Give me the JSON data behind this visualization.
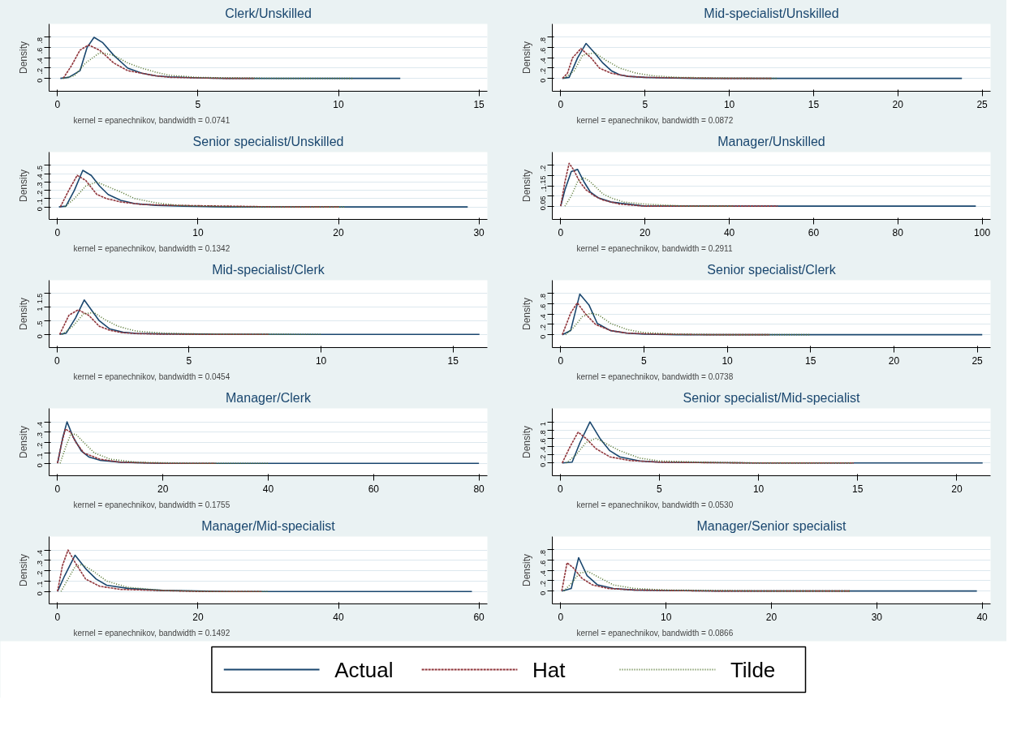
{
  "chart_data": [
    {
      "type": "line",
      "title": "Clerk/Unskilled",
      "ylabel": "Density",
      "annotations": [
        "kernel = epanechnikov, bandwidth = 0.0741"
      ],
      "xlim": [
        -0.3,
        15.3
      ],
      "xticks": [
        0,
        5,
        10,
        15
      ],
      "ylim": [
        -0.25,
        1.06
      ],
      "yticks": [
        0,
        {
          "value": 0.2,
          "label": ".2"
        },
        {
          "value": 0.4,
          "label": ".4"
        },
        {
          "value": 0.6,
          "label": ".6"
        },
        {
          "value": 0.8,
          "label": ".8"
        }
      ],
      "grid": "y",
      "legend": "bottom",
      "series": [
        {
          "name": "Actual",
          "color": "#1a476f",
          "line_style": "solid",
          "x": [
            0.1,
            0.4,
            0.8,
            1.05,
            1.3,
            1.6,
            2.0,
            2.5,
            3.0,
            3.5,
            4,
            5,
            6,
            8,
            10,
            12.2
          ],
          "values": [
            0,
            0.02,
            0.15,
            0.6,
            0.8,
            0.7,
            0.45,
            0.2,
            0.1,
            0.05,
            0.03,
            0.01,
            0,
            0,
            0,
            0
          ]
        },
        {
          "name": "Hat",
          "color": "#90353b",
          "line_style": "dashed",
          "x": [
            0.2,
            0.5,
            0.8,
            1.1,
            1.5,
            2.0,
            2.5,
            3,
            3.5,
            4,
            5,
            6,
            7
          ],
          "values": [
            0,
            0.25,
            0.55,
            0.65,
            0.55,
            0.3,
            0.15,
            0.1,
            0.05,
            0.02,
            0.01,
            0,
            0
          ]
        },
        {
          "name": "Tilde",
          "color": "#55752f",
          "line_style": "dotted",
          "x": [
            0.2,
            0.6,
            1.0,
            1.5,
            2.0,
            2.5,
            3,
            3.5,
            4,
            5,
            6,
            8,
            10.5
          ],
          "values": [
            0,
            0.05,
            0.3,
            0.5,
            0.45,
            0.3,
            0.2,
            0.12,
            0.06,
            0.02,
            0.01,
            0,
            0
          ]
        }
      ]
    },
    {
      "type": "line",
      "title": "Mid-specialist/Unskilled",
      "ylabel": "Density",
      "annotations": [
        "kernel = epanechnikov, bandwidth = 0.0872"
      ],
      "xlim": [
        -0.5,
        25.5
      ],
      "xticks": [
        0,
        5,
        10,
        15,
        20,
        25
      ],
      "ylim": [
        -0.25,
        1.06
      ],
      "yticks": [
        0,
        {
          "value": 0.2,
          "label": ".2"
        },
        {
          "value": 0.4,
          "label": ".4"
        },
        {
          "value": 0.6,
          "label": ".6"
        },
        {
          "value": 0.8,
          "label": ".8"
        }
      ],
      "grid": "y",
      "series": [
        {
          "color": "#1a476f",
          "line_style": "solid",
          "x": [
            0.1,
            0.5,
            1.0,
            1.5,
            2.0,
            2.5,
            3,
            3.5,
            4,
            5,
            6,
            8,
            10,
            15,
            20,
            23.8
          ],
          "values": [
            0,
            0.02,
            0.4,
            0.68,
            0.5,
            0.3,
            0.15,
            0.07,
            0.04,
            0.02,
            0.01,
            0,
            0,
            0,
            0,
            0
          ]
        },
        {
          "color": "#90353b",
          "line_style": "dashed",
          "x": [
            0.1,
            0.4,
            0.7,
            1.2,
            1.8,
            2.3,
            3,
            4,
            5,
            7,
            10,
            12.5
          ],
          "values": [
            0,
            0.1,
            0.4,
            0.58,
            0.4,
            0.2,
            0.1,
            0.04,
            0.02,
            0.01,
            0,
            0
          ]
        },
        {
          "color": "#55752f",
          "line_style": "dotted",
          "x": [
            0.2,
            0.8,
            1.3,
            2.0,
            2.7,
            3.5,
            4.5,
            5.5,
            7,
            9,
            12.8
          ],
          "values": [
            0,
            0.15,
            0.45,
            0.5,
            0.35,
            0.2,
            0.1,
            0.05,
            0.02,
            0.01,
            0
          ]
        }
      ]
    },
    {
      "type": "line",
      "title": "Senior specialist/Unskilled",
      "ylabel": "Density",
      "annotations": [
        "kernel = epanechnikov, bandwidth = 0.1342"
      ],
      "xlim": [
        -0.6,
        30.6
      ],
      "xticks": [
        0,
        10,
        20,
        30
      ],
      "ylim": [
        -0.15,
        0.66
      ],
      "yticks": [
        0,
        {
          "value": 0.1,
          "label": ".1"
        },
        {
          "value": 0.2,
          "label": ".2"
        },
        {
          "value": 0.3,
          "label": ".3"
        },
        {
          "value": 0.4,
          "label": ".4"
        },
        {
          "value": 0.5,
          "label": ".5"
        }
      ],
      "grid": "y",
      "series": [
        {
          "color": "#1a476f",
          "line_style": "solid",
          "x": [
            0.1,
            0.6,
            1.2,
            1.8,
            2.4,
            3.0,
            3.6,
            4.5,
            5.5,
            7,
            9,
            12,
            20,
            29.2
          ],
          "values": [
            0,
            0.01,
            0.2,
            0.44,
            0.38,
            0.25,
            0.15,
            0.08,
            0.04,
            0.02,
            0.01,
            0,
            0,
            0
          ]
        },
        {
          "color": "#90353b",
          "line_style": "dashed",
          "x": [
            0.2,
            0.8,
            1.4,
            2.0,
            2.8,
            3.5,
            4.5,
            6,
            8,
            12,
            16,
            20
          ],
          "values": [
            0,
            0.2,
            0.38,
            0.32,
            0.15,
            0.1,
            0.06,
            0.03,
            0.02,
            0.01,
            0,
            0
          ]
        },
        {
          "color": "#55752f",
          "line_style": "dotted",
          "x": [
            0.5,
            1.2,
            2.0,
            2.8,
            3.5,
            4.5,
            5.5,
            7,
            8.5,
            10,
            14,
            20.5
          ],
          "values": [
            0,
            0.1,
            0.25,
            0.3,
            0.25,
            0.18,
            0.1,
            0.05,
            0.02,
            0.01,
            0,
            0
          ]
        }
      ]
    },
    {
      "type": "line",
      "title": "Manager/Unskilled",
      "ylabel": "Density",
      "annotations": [
        "kernel = epanechnikov, bandwidth = 0.2911"
      ],
      "xlim": [
        -2,
        102
      ],
      "xticks": [
        0,
        20,
        40,
        60,
        80,
        100
      ],
      "ylim": [
        -0.065,
        0.265
      ],
      "yticks": [
        0,
        {
          "value": 0.05,
          "label": ".05"
        },
        {
          "value": 0.1,
          "label": ".1"
        },
        {
          "value": 0.15,
          "label": ".15"
        },
        {
          "value": 0.2,
          "label": ".2"
        }
      ],
      "grid": "y",
      "series": [
        {
          "color": "#1a476f",
          "line_style": "solid",
          "x": [
            0,
            1,
            2.5,
            4,
            5.5,
            7,
            9,
            12,
            16,
            20,
            30,
            50,
            98.5
          ],
          "values": [
            0,
            0.08,
            0.17,
            0.18,
            0.12,
            0.07,
            0.04,
            0.02,
            0.01,
            0,
            0,
            0,
            0
          ]
        },
        {
          "color": "#90353b",
          "line_style": "dashed",
          "x": [
            0,
            1,
            2,
            3,
            4.5,
            6,
            8,
            10,
            14,
            20,
            30,
            40,
            51.5
          ],
          "values": [
            0,
            0.12,
            0.21,
            0.18,
            0.12,
            0.08,
            0.05,
            0.03,
            0.01,
            0,
            0,
            0,
            0
          ]
        },
        {
          "color": "#55752f",
          "line_style": "dotted",
          "x": [
            1,
            2.5,
            4,
            5.5,
            7,
            8.5,
            10,
            12,
            15,
            20,
            30,
            41
          ],
          "values": [
            0,
            0.05,
            0.12,
            0.14,
            0.12,
            0.09,
            0.06,
            0.04,
            0.02,
            0.01,
            0,
            0
          ]
        }
      ]
    },
    {
      "type": "line",
      "title": "Mid-specialist/Clerk",
      "ylabel": "Density",
      "annotations": [
        "kernel = epanechnikov, bandwidth = 0.0454"
      ],
      "xlim": [
        -0.3,
        16.3
      ],
      "xticks": [
        0,
        5,
        10,
        15
      ],
      "ylim": [
        -0.48,
        1.98
      ],
      "yticks": [
        0,
        {
          "value": 0.5,
          "label": ".5"
        },
        1,
        1.5
      ],
      "grid": "y",
      "series": [
        {
          "color": "#1a476f",
          "line_style": "solid",
          "x": [
            0.1,
            0.35,
            0.7,
            1.03,
            1.3,
            1.6,
            2.0,
            2.5,
            3,
            4,
            6,
            10,
            16
          ],
          "values": [
            0,
            0.05,
            0.6,
            1.26,
            0.9,
            0.5,
            0.2,
            0.08,
            0.04,
            0.02,
            0.01,
            0,
            0
          ]
        },
        {
          "color": "#90353b",
          "line_style": "dashed",
          "x": [
            0.1,
            0.45,
            0.8,
            1.2,
            1.6,
            2,
            2.5,
            3,
            4,
            6,
            8
          ],
          "values": [
            0,
            0.7,
            0.9,
            0.7,
            0.3,
            0.15,
            0.06,
            0.03,
            0.01,
            0,
            0
          ]
        },
        {
          "color": "#55752f",
          "line_style": "dotted",
          "x": [
            0.2,
            0.6,
            1,
            1.4,
            1.8,
            2.3,
            3,
            4,
            5,
            7,
            10
          ],
          "values": [
            0,
            0.3,
            0.75,
            0.8,
            0.55,
            0.3,
            0.12,
            0.05,
            0.02,
            0.01,
            0
          ]
        }
      ]
    },
    {
      "type": "line",
      "title": "Senior specialist/Clerk",
      "ylabel": "Density",
      "annotations": [
        "kernel = epanechnikov, bandwidth = 0.0738"
      ],
      "xlim": [
        -0.5,
        25.8
      ],
      "xticks": [
        0,
        5,
        10,
        15,
        20,
        25
      ],
      "ylim": [
        -0.25,
        1.06
      ],
      "yticks": [
        0,
        {
          "value": 0.2,
          "label": ".2"
        },
        {
          "value": 0.4,
          "label": ".4"
        },
        {
          "value": 0.6,
          "label": ".6"
        },
        {
          "value": 0.8,
          "label": ".8"
        }
      ],
      "grid": "y",
      "series": [
        {
          "color": "#1a476f",
          "line_style": "solid",
          "x": [
            0.1,
            0.6,
            1.15,
            1.7,
            2.2,
            3,
            4,
            5,
            7,
            10,
            15,
            20,
            25.3
          ],
          "values": [
            0,
            0.08,
            0.79,
            0.58,
            0.22,
            0.08,
            0.03,
            0.01,
            0,
            0,
            0,
            0,
            0
          ]
        },
        {
          "color": "#90353b",
          "line_style": "dashed",
          "x": [
            0.1,
            0.6,
            1.0,
            1.5,
            2.1,
            3,
            4,
            6,
            9,
            12.5
          ],
          "values": [
            0,
            0.42,
            0.62,
            0.4,
            0.2,
            0.08,
            0.03,
            0.01,
            0,
            0
          ]
        },
        {
          "color": "#55752f",
          "line_style": "dotted",
          "x": [
            0.3,
            0.8,
            1.3,
            1.8,
            2.3,
            3,
            4,
            5,
            7,
            10,
            15
          ],
          "values": [
            0,
            0.15,
            0.35,
            0.42,
            0.38,
            0.22,
            0.1,
            0.04,
            0.01,
            0,
            0
          ]
        }
      ]
    },
    {
      "type": "line",
      "title": "Manager/Clerk",
      "ylabel": "Density",
      "annotations": [
        "kernel = epanechnikov, bandwidth = 0.1755"
      ],
      "xlim": [
        -1.6,
        81.6
      ],
      "xticks": [
        0,
        20,
        40,
        60,
        80
      ],
      "ylim": [
        -0.12,
        0.53
      ],
      "yticks": [
        0,
        {
          "value": 0.1,
          "label": ".1"
        },
        {
          "value": 0.2,
          "label": ".2"
        },
        {
          "value": 0.3,
          "label": ".3"
        },
        {
          "value": 0.4,
          "label": ".4"
        }
      ],
      "grid": "y",
      "series": [
        {
          "color": "#1a476f",
          "line_style": "solid",
          "x": [
            0,
            1,
            1.8,
            3,
            4.5,
            6,
            8,
            12,
            20,
            40,
            80
          ],
          "values": [
            0,
            0.25,
            0.4,
            0.25,
            0.12,
            0.06,
            0.03,
            0.01,
            0,
            0,
            0
          ]
        },
        {
          "color": "#90353b",
          "line_style": "dashed",
          "x": [
            0,
            0.8,
            1.5,
            2.5,
            3.5,
            5,
            8,
            12,
            20,
            30
          ],
          "values": [
            0,
            0.2,
            0.33,
            0.3,
            0.2,
            0.1,
            0.04,
            0.01,
            0,
            0
          ]
        },
        {
          "color": "#55752f",
          "line_style": "dotted",
          "x": [
            0.5,
            1.5,
            2.5,
            3.5,
            5,
            7,
            10,
            15,
            25,
            40
          ],
          "values": [
            0,
            0.15,
            0.28,
            0.28,
            0.2,
            0.1,
            0.04,
            0.01,
            0,
            0
          ]
        }
      ]
    },
    {
      "type": "line",
      "title": "Senior specialist/Mid-specialist",
      "ylabel": "Density",
      "annotations": [
        "kernel = epanechnikov, bandwidth = 0.0530"
      ],
      "xlim": [
        -0.4,
        21.7
      ],
      "xticks": [
        0,
        5,
        10,
        15,
        20
      ],
      "ylim": [
        -0.31,
        1.33
      ],
      "yticks": [
        0,
        {
          "value": 0.2,
          "label": ".2"
        },
        {
          "value": 0.4,
          "label": ".4"
        },
        {
          "value": 0.6,
          "label": ".6"
        },
        {
          "value": 0.8,
          "label": ".8"
        },
        1
      ],
      "grid": "y",
      "series": [
        {
          "color": "#1a476f",
          "line_style": "solid",
          "x": [
            0.1,
            0.6,
            1.0,
            1.5,
            2.0,
            2.5,
            3,
            4,
            5,
            7,
            10,
            15,
            21.3
          ],
          "values": [
            0,
            0.02,
            0.5,
            1.0,
            0.6,
            0.3,
            0.15,
            0.05,
            0.02,
            0.01,
            0,
            0,
            0
          ]
        },
        {
          "color": "#90353b",
          "line_style": "dashed",
          "x": [
            0.1,
            0.5,
            0.9,
            1.3,
            1.8,
            2.5,
            3.5,
            5,
            7,
            10,
            14.8
          ],
          "values": [
            0,
            0.4,
            0.75,
            0.6,
            0.35,
            0.15,
            0.06,
            0.02,
            0.01,
            0,
            0
          ]
        },
        {
          "color": "#55752f",
          "line_style": "dotted",
          "x": [
            0.3,
            0.8,
            1.3,
            1.8,
            2.4,
            3,
            4,
            5,
            7,
            10,
            14.8
          ],
          "values": [
            0,
            0.2,
            0.5,
            0.6,
            0.45,
            0.3,
            0.12,
            0.05,
            0.02,
            0,
            0
          ]
        }
      ]
    },
    {
      "type": "line",
      "title": "Manager/Mid-specialist",
      "ylabel": "Density",
      "annotations": [
        "kernel = epanechnikov, bandwidth = 0.1492"
      ],
      "xlim": [
        -1.2,
        61.2
      ],
      "xticks": [
        0,
        20,
        40,
        60
      ],
      "ylim": [
        -0.12,
        0.53
      ],
      "yticks": [
        0,
        {
          "value": 0.1,
          "label": ".1"
        },
        {
          "value": 0.2,
          "label": ".2"
        },
        {
          "value": 0.3,
          "label": ".3"
        },
        {
          "value": 0.4,
          "label": ".4"
        }
      ],
      "grid": "y",
      "series": [
        {
          "color": "#1a476f",
          "line_style": "solid",
          "x": [
            0,
            1,
            2.5,
            4,
            5.5,
            7,
            10,
            15,
            25,
            40,
            59
          ],
          "values": [
            0,
            0.15,
            0.35,
            0.22,
            0.12,
            0.06,
            0.03,
            0.01,
            0,
            0,
            0
          ]
        },
        {
          "color": "#90353b",
          "line_style": "dashed",
          "x": [
            0,
            0.7,
            1.5,
            2.5,
            4,
            6,
            9,
            14,
            20,
            29
          ],
          "values": [
            0,
            0.25,
            0.4,
            0.28,
            0.12,
            0.05,
            0.02,
            0.01,
            0,
            0
          ]
        },
        {
          "color": "#55752f",
          "line_style": "dotted",
          "x": [
            0.5,
            1.5,
            2.5,
            3.5,
            5,
            7,
            10,
            15,
            22,
            30
          ],
          "values": [
            0,
            0.12,
            0.24,
            0.26,
            0.2,
            0.1,
            0.04,
            0.01,
            0,
            0
          ]
        }
      ]
    },
    {
      "type": "line",
      "title": "Manager/Senior specialist",
      "ylabel": "Density",
      "annotations": [
        "kernel = epanechnikov, bandwidth = 0.0866"
      ],
      "xlim": [
        -0.8,
        40.8
      ],
      "xticks": [
        0,
        10,
        20,
        30,
        40
      ],
      "ylim": [
        -0.25,
        1.06
      ],
      "yticks": [
        0,
        {
          "value": 0.2,
          "label": ".2"
        },
        {
          "value": 0.4,
          "label": ".4"
        },
        {
          "value": 0.6,
          "label": ".6"
        },
        {
          "value": 0.8,
          "label": ".8"
        }
      ],
      "grid": "y",
      "series": [
        {
          "color": "#1a476f",
          "line_style": "solid",
          "x": [
            0.1,
            1,
            1.7,
            2.5,
            3.5,
            5,
            7,
            10,
            15,
            25,
            39.5
          ],
          "values": [
            0,
            0.05,
            0.65,
            0.3,
            0.12,
            0.05,
            0.02,
            0.01,
            0,
            0,
            0
          ]
        },
        {
          "color": "#90353b",
          "line_style": "dashed",
          "x": [
            0.1,
            0.6,
            1.2,
            2,
            3,
            4.5,
            7,
            10,
            15,
            20,
            27.5
          ],
          "values": [
            0,
            0.55,
            0.45,
            0.25,
            0.12,
            0.05,
            0.02,
            0.01,
            0,
            0,
            0
          ]
        },
        {
          "color": "#55752f",
          "line_style": "dotted",
          "x": [
            0.3,
            1,
            1.8,
            2.6,
            3.5,
            5,
            7,
            10,
            15,
            20,
            27.5
          ],
          "values": [
            0,
            0.15,
            0.35,
            0.38,
            0.28,
            0.12,
            0.05,
            0.02,
            0.01,
            0,
            0
          ]
        }
      ]
    }
  ]
}
